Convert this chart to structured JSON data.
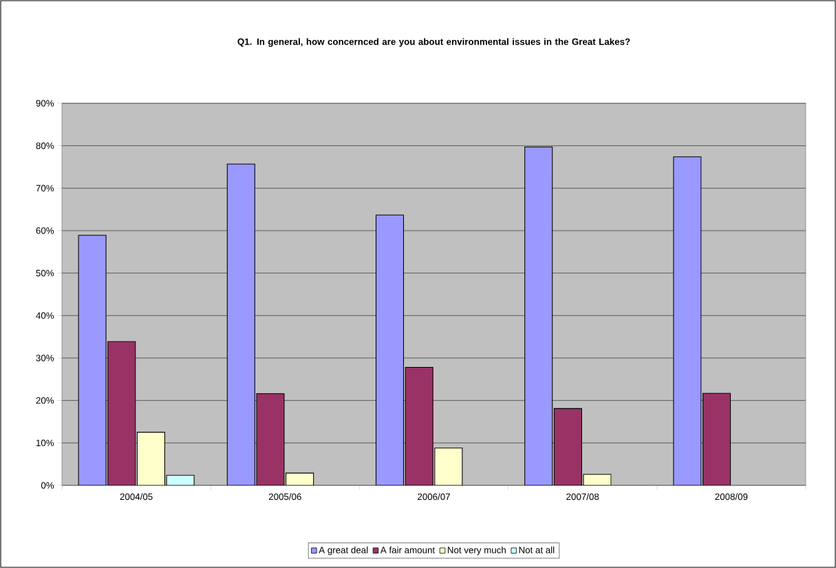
{
  "chart_data": {
    "type": "bar",
    "title": "Q1. In general, how concernced are you about environmental issues in the Great Lakes?",
    "categories": [
      "2004/05",
      "2005/06",
      "2006/07",
      "2007/08",
      "2008/09"
    ],
    "series": [
      {
        "name": "A great deal",
        "color": "#9999ff",
        "values": [
          58.9,
          75.7,
          63.7,
          79.7,
          77.4
        ]
      },
      {
        "name": "A fair amount",
        "color": "#993366",
        "values": [
          33.9,
          21.6,
          27.8,
          18.1,
          21.7
        ]
      },
      {
        "name": "Not very much",
        "color": "#ffffcc",
        "values": [
          12.5,
          2.9,
          8.8,
          2.6,
          null
        ]
      },
      {
        "name": "Not at all",
        "color": "#ccffff",
        "values": [
          2.4,
          null,
          null,
          null,
          null
        ]
      }
    ],
    "ylim": [
      0,
      90
    ],
    "yticks": [
      {
        "value": 0,
        "label": "0%"
      },
      {
        "value": 10,
        "label": "10%"
      },
      {
        "value": 20,
        "label": "20%"
      },
      {
        "value": 30,
        "label": "30%"
      },
      {
        "value": 40,
        "label": "40%"
      },
      {
        "value": 50,
        "label": "50%"
      },
      {
        "value": 60,
        "label": "60%"
      },
      {
        "value": 70,
        "label": "70%"
      },
      {
        "value": 80,
        "label": "80%"
      },
      {
        "value": 90,
        "label": "90%"
      }
    ],
    "grid": "y",
    "legend": "bottom"
  }
}
